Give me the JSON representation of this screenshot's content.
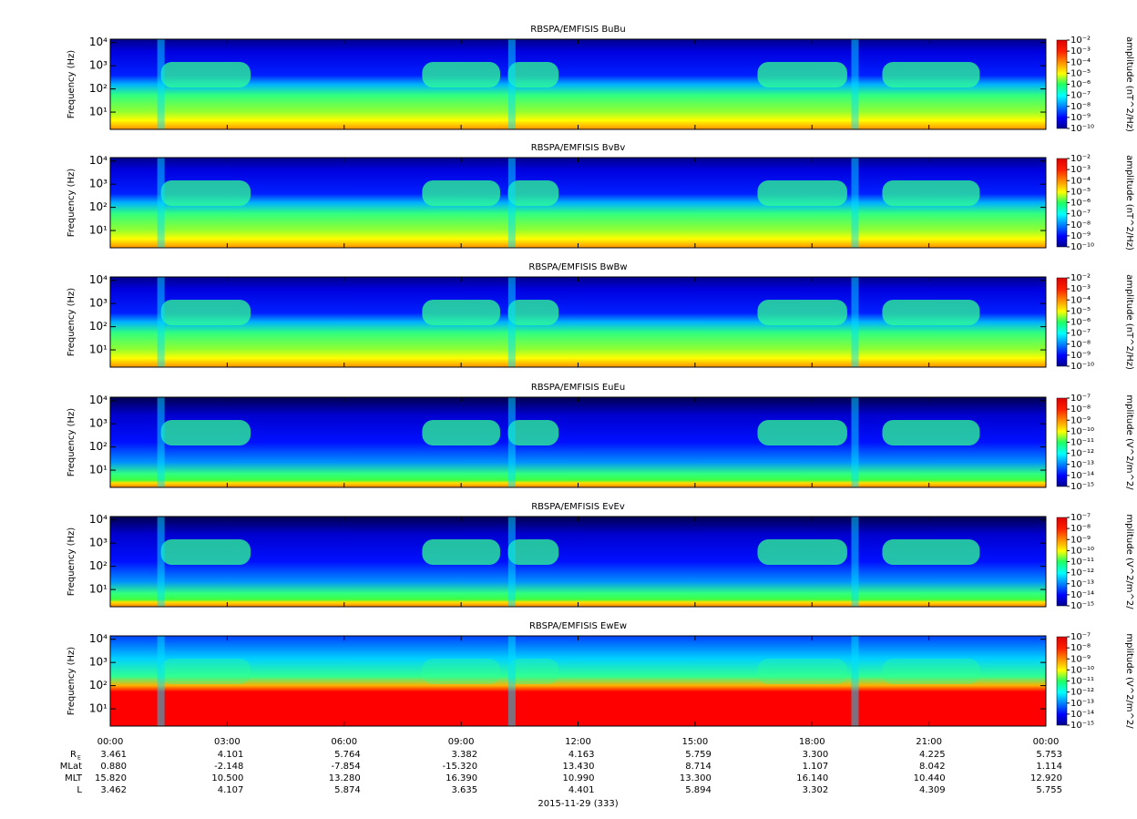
{
  "chart_data": [
    {
      "type": "spectrogram",
      "title": "RBSPA/EMFISIS  BuBu",
      "ylabel": "Frequency (Hz)",
      "ylog": true,
      "ylim": [
        1.8,
        14000
      ],
      "yticks": [
        {
          "value": 10,
          "label": "10¹"
        },
        {
          "value": 100,
          "label": "10²"
        },
        {
          "value": 1000,
          "label": "10³"
        },
        {
          "value": 10000,
          "label": "10⁴"
        }
      ],
      "zlabel": "amplitude (nT^2/Hz)",
      "zlog": true,
      "zlim": [
        1e-10,
        0.01
      ],
      "zticks": [
        {
          "value": 0.01,
          "label": "10⁻²"
        },
        {
          "value": 0.001,
          "label": "10⁻³"
        },
        {
          "value": 0.0001,
          "label": "10⁻⁴"
        },
        {
          "value": 1e-05,
          "label": "10⁻⁵"
        },
        {
          "value": 1e-06,
          "label": "10⁻⁶"
        },
        {
          "value": 1e-07,
          "label": "10⁻⁷"
        },
        {
          "value": 1e-08,
          "label": "10⁻⁸"
        },
        {
          "value": 1e-09,
          "label": "10⁻⁹"
        },
        {
          "value": 1e-10,
          "label": "10⁻¹⁰"
        }
      ]
    },
    {
      "type": "spectrogram",
      "title": "RBSPA/EMFISIS  BvBv",
      "ylabel": "Frequency (Hz)",
      "ylog": true,
      "ylim": [
        1.8,
        14000
      ],
      "yticks": [
        {
          "value": 10,
          "label": "10¹"
        },
        {
          "value": 100,
          "label": "10²"
        },
        {
          "value": 1000,
          "label": "10³"
        },
        {
          "value": 10000,
          "label": "10⁴"
        }
      ],
      "zlabel": "amplitude (nT^2/Hz)",
      "zlog": true,
      "zlim": [
        1e-10,
        0.01
      ],
      "zticks": [
        {
          "value": 0.01,
          "label": "10⁻²"
        },
        {
          "value": 0.001,
          "label": "10⁻³"
        },
        {
          "value": 0.0001,
          "label": "10⁻⁴"
        },
        {
          "value": 1e-05,
          "label": "10⁻⁵"
        },
        {
          "value": 1e-06,
          "label": "10⁻⁶"
        },
        {
          "value": 1e-07,
          "label": "10⁻⁷"
        },
        {
          "value": 1e-08,
          "label": "10⁻⁸"
        },
        {
          "value": 1e-09,
          "label": "10⁻⁹"
        },
        {
          "value": 1e-10,
          "label": "10⁻¹⁰"
        }
      ]
    },
    {
      "type": "spectrogram",
      "title": "RBSPA/EMFISIS  BwBw",
      "ylabel": "Frequency (Hz)",
      "ylog": true,
      "ylim": [
        1.8,
        14000
      ],
      "yticks": [
        {
          "value": 10,
          "label": "10¹"
        },
        {
          "value": 100,
          "label": "10²"
        },
        {
          "value": 1000,
          "label": "10³"
        },
        {
          "value": 10000,
          "label": "10⁴"
        }
      ],
      "zlabel": "amplitude (nT^2/Hz)",
      "zlog": true,
      "zlim": [
        1e-10,
        0.01
      ],
      "zticks": [
        {
          "value": 0.01,
          "label": "10⁻²"
        },
        {
          "value": 0.001,
          "label": "10⁻³"
        },
        {
          "value": 0.0001,
          "label": "10⁻⁴"
        },
        {
          "value": 1e-05,
          "label": "10⁻⁵"
        },
        {
          "value": 1e-06,
          "label": "10⁻⁶"
        },
        {
          "value": 1e-07,
          "label": "10⁻⁷"
        },
        {
          "value": 1e-08,
          "label": "10⁻⁸"
        },
        {
          "value": 1e-09,
          "label": "10⁻⁹"
        },
        {
          "value": 1e-10,
          "label": "10⁻¹⁰"
        }
      ]
    },
    {
      "type": "spectrogram",
      "title": "RBSPA/EMFISIS  EuEu",
      "ylabel": "Frequency (Hz)",
      "ylog": true,
      "ylim": [
        1.8,
        14000
      ],
      "yticks": [
        {
          "value": 10,
          "label": "10¹"
        },
        {
          "value": 100,
          "label": "10²"
        },
        {
          "value": 1000,
          "label": "10³"
        },
        {
          "value": 10000,
          "label": "10⁴"
        }
      ],
      "zlabel": "mplitude (V^2/m^2/",
      "zlog": true,
      "zlim": [
        1e-15,
        1e-07
      ],
      "zticks": [
        {
          "value": 1e-07,
          "label": "10⁻⁷"
        },
        {
          "value": 1e-08,
          "label": "10⁻⁸"
        },
        {
          "value": 1e-09,
          "label": "10⁻⁹"
        },
        {
          "value": 1e-10,
          "label": "10⁻¹⁰"
        },
        {
          "value": 1e-11,
          "label": "10⁻¹¹"
        },
        {
          "value": 1e-12,
          "label": "10⁻¹²"
        },
        {
          "value": 1e-13,
          "label": "10⁻¹³"
        },
        {
          "value": 1e-14,
          "label": "10⁻¹⁴"
        },
        {
          "value": 1e-15,
          "label": "10⁻¹⁵"
        }
      ]
    },
    {
      "type": "spectrogram",
      "title": "RBSPA/EMFISIS  EvEv",
      "ylabel": "Frequency (Hz)",
      "ylog": true,
      "ylim": [
        1.8,
        14000
      ],
      "yticks": [
        {
          "value": 10,
          "label": "10¹"
        },
        {
          "value": 100,
          "label": "10²"
        },
        {
          "value": 1000,
          "label": "10³"
        },
        {
          "value": 10000,
          "label": "10⁴"
        }
      ],
      "zlabel": "mplitude (V^2/m^2/",
      "zlog": true,
      "zlim": [
        1e-15,
        1e-07
      ],
      "zticks": [
        {
          "value": 1e-07,
          "label": "10⁻⁷"
        },
        {
          "value": 1e-08,
          "label": "10⁻⁸"
        },
        {
          "value": 1e-09,
          "label": "10⁻⁹"
        },
        {
          "value": 1e-10,
          "label": "10⁻¹⁰"
        },
        {
          "value": 1e-11,
          "label": "10⁻¹¹"
        },
        {
          "value": 1e-12,
          "label": "10⁻¹²"
        },
        {
          "value": 1e-13,
          "label": "10⁻¹³"
        },
        {
          "value": 1e-14,
          "label": "10⁻¹⁴"
        },
        {
          "value": 1e-15,
          "label": "10⁻¹⁵"
        }
      ]
    },
    {
      "type": "spectrogram",
      "title": "RBSPA/EMFISIS  EwEw",
      "ylabel": "Frequency (Hz)",
      "ylog": true,
      "ylim": [
        1.8,
        14000
      ],
      "yticks": [
        {
          "value": 10,
          "label": "10¹"
        },
        {
          "value": 100,
          "label": "10²"
        },
        {
          "value": 1000,
          "label": "10³"
        },
        {
          "value": 10000,
          "label": "10⁴"
        }
      ],
      "zlabel": "mplitude (V^2/m^2/",
      "zlog": true,
      "zlim": [
        1e-15,
        1e-07
      ],
      "zticks": [
        {
          "value": 1e-07,
          "label": "10⁻⁷"
        },
        {
          "value": 1e-08,
          "label": "10⁻⁸"
        },
        {
          "value": 1e-09,
          "label": "10⁻⁹"
        },
        {
          "value": 1e-10,
          "label": "10⁻¹⁰"
        },
        {
          "value": 1e-11,
          "label": "10⁻¹¹"
        },
        {
          "value": 1e-12,
          "label": "10⁻¹²"
        },
        {
          "value": 1e-13,
          "label": "10⁻¹³"
        },
        {
          "value": 1e-14,
          "label": "10⁻¹⁴"
        },
        {
          "value": 1e-15,
          "label": "10⁻¹⁵"
        }
      ]
    }
  ],
  "x_axis": {
    "xlim": [
      0,
      24
    ],
    "xticks": [
      {
        "value": 0,
        "label": "00:00"
      },
      {
        "value": 3,
        "label": "03:00"
      },
      {
        "value": 6,
        "label": "06:00"
      },
      {
        "value": 9,
        "label": "09:00"
      },
      {
        "value": 12,
        "label": "12:00"
      },
      {
        "value": 15,
        "label": "15:00"
      },
      {
        "value": 18,
        "label": "18:00"
      },
      {
        "value": 21,
        "label": "21:00"
      },
      {
        "value": 24,
        "label": "00:00"
      }
    ]
  },
  "ephemeris": {
    "rows": [
      {
        "label": "R",
        "sub": "E",
        "values": [
          "3.461",
          "4.101",
          "5.764",
          "3.382",
          "4.163",
          "5.759",
          "3.300",
          "4.225",
          "5.753"
        ]
      },
      {
        "label": "MLat",
        "values": [
          "0.880",
          "-2.148",
          "-7.854",
          "-15.320",
          "13.430",
          "8.714",
          "1.107",
          "8.042",
          "1.114"
        ]
      },
      {
        "label": "MLT",
        "values": [
          "15.820",
          "10.500",
          "13.280",
          "16.390",
          "10.990",
          "13.300",
          "16.140",
          "10.440",
          "12.920"
        ]
      },
      {
        "label": "L",
        "values": [
          "3.462",
          "4.107",
          "5.874",
          "3.635",
          "4.401",
          "5.894",
          "3.302",
          "4.309",
          "5.755"
        ]
      }
    ]
  },
  "date": "2015-11-29 (333)"
}
